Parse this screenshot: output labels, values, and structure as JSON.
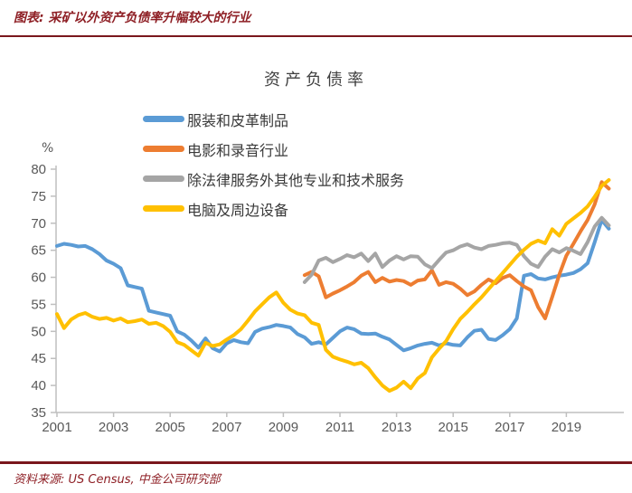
{
  "header": {
    "title": "图表: 采矿以外资产负债率升幅较大的行业"
  },
  "footer": {
    "source": "资料来源: US Census, 中金公司研究部"
  },
  "chart_data": {
    "type": "line",
    "title": "资产负债率",
    "ylabel": "%",
    "ylim": [
      35,
      80
    ],
    "ytick_step": 5,
    "yticks": [
      35,
      40,
      45,
      50,
      55,
      60,
      65,
      70,
      75,
      80
    ],
    "xticks": [
      2001,
      2003,
      2005,
      2007,
      2009,
      2011,
      2013,
      2015,
      2017,
      2019
    ],
    "xlim": [
      2001,
      2021
    ],
    "x_resolution": "quarterly",
    "grid": false,
    "legend_position": "upper-left-vertical",
    "axis_color": "#BFBFBF",
    "tick_label_color": "#595959",
    "series": [
      {
        "name": "服装和皮革制品",
        "color": "#5B9BD5",
        "x_start": 2001.0,
        "x_step": 0.25,
        "values": [
          65.8,
          66.2,
          66.0,
          65.7,
          65.8,
          65.2,
          64.3,
          63.1,
          62.5,
          61.7,
          58.5,
          58.2,
          57.9,
          53.8,
          53.5,
          53.2,
          52.9,
          50.0,
          49.4,
          48.3,
          47.0,
          48.7,
          46.9,
          46.3,
          47.8,
          48.4,
          48.0,
          47.8,
          49.9,
          50.5,
          50.8,
          51.2,
          51.0,
          50.7,
          49.5,
          48.9,
          47.7,
          48.0,
          47.6,
          48.8,
          50.0,
          50.7,
          50.4,
          49.6,
          49.5,
          49.6,
          49.0,
          48.5,
          47.5,
          46.5,
          46.9,
          47.4,
          47.7,
          47.9,
          47.4,
          47.8,
          47.5,
          47.4,
          48.9,
          50.1,
          50.3,
          48.6,
          48.4,
          49.3,
          50.4,
          52.4,
          60.3,
          60.6,
          59.8,
          59.6,
          60.0,
          60.3,
          60.5,
          60.8,
          61.5,
          62.6,
          66.5,
          70.6,
          69.0
        ]
      },
      {
        "name": "电影和录音行业",
        "color": "#ED7D31",
        "x_start": 2009.75,
        "x_step": 0.25,
        "values": [
          60.4,
          61.0,
          60.2,
          56.3,
          57.0,
          57.6,
          58.3,
          59.1,
          60.3,
          61.0,
          59.1,
          59.9,
          59.2,
          59.5,
          59.3,
          58.6,
          59.4,
          59.6,
          61.3,
          58.6,
          59.1,
          58.8,
          57.9,
          56.7,
          57.4,
          58.6,
          59.6,
          58.9,
          59.9,
          60.4,
          59.3,
          58.3,
          57.6,
          54.5,
          52.4,
          56.4,
          60.5,
          64.0,
          66.2,
          68.5,
          70.6,
          73.5,
          77.6,
          76.4
        ]
      },
      {
        "name": "除法律服务外其他专业和技术服务",
        "color": "#A5A5A5",
        "x_start": 2009.75,
        "x_step": 0.25,
        "values": [
          59.1,
          60.5,
          63.1,
          63.6,
          62.8,
          63.4,
          64.1,
          63.7,
          64.4,
          63.0,
          64.4,
          61.9,
          63.1,
          63.9,
          63.3,
          63.9,
          63.8,
          62.4,
          61.7,
          63.2,
          64.6,
          65.0,
          65.7,
          66.1,
          65.5,
          65.2,
          65.8,
          66.0,
          66.3,
          66.4,
          66.0,
          63.9,
          62.5,
          61.9,
          63.8,
          65.2,
          64.6,
          65.4,
          64.9,
          64.3,
          66.5,
          69.4,
          71.0,
          69.6
        ]
      },
      {
        "name": "电脑及周边设备",
        "color": "#FFC000",
        "x_start": 2001.0,
        "x_step": 0.25,
        "values": [
          53.2,
          50.6,
          52.2,
          53.0,
          53.4,
          52.7,
          52.3,
          52.5,
          52.0,
          52.4,
          51.7,
          51.9,
          52.2,
          51.4,
          51.6,
          51.0,
          49.9,
          48.0,
          47.5,
          46.5,
          45.5,
          47.9,
          47.3,
          47.6,
          48.5,
          49.3,
          50.4,
          52.0,
          53.7,
          55.0,
          56.3,
          57.2,
          55.3,
          54.0,
          53.3,
          53.0,
          51.6,
          51.2,
          46.6,
          45.3,
          44.8,
          44.4,
          43.9,
          44.2,
          43.2,
          41.5,
          40.0,
          39.0,
          39.6,
          40.7,
          39.5,
          41.3,
          42.3,
          45.2,
          46.8,
          48.2,
          50.4,
          52.3,
          53.6,
          55.0,
          56.3,
          57.8,
          59.3,
          60.8,
          62.3,
          63.8,
          65.1,
          66.2,
          66.8,
          66.3,
          68.9,
          67.7,
          69.9,
          70.9,
          71.9,
          73.1,
          74.9,
          76.9,
          78.0
        ]
      }
    ]
  }
}
